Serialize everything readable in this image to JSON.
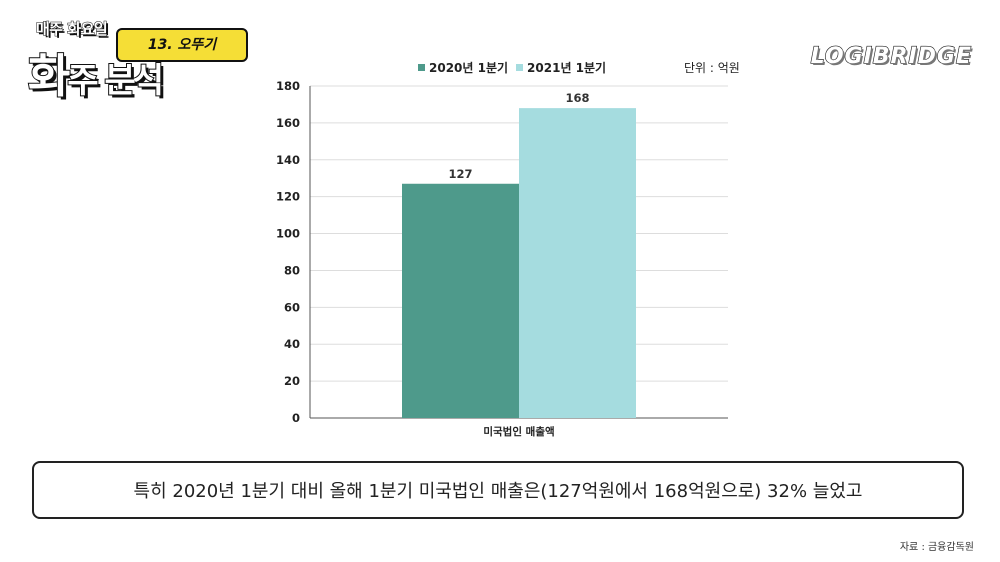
{
  "logo": {
    "series": "매주 화요일",
    "episode": "13. 오뚜기",
    "title_a": "화",
    "title_b": "주 분석"
  },
  "brand": "LOGIBRIDGE",
  "unit": "단위 : 억원",
  "caption": "특히 2020년 1분기 대비 올해 1분기 미국법인 매출은(127억원에서 168억원으로) 32% 늘었고",
  "source": "자료 : 금융감독원",
  "colors": {
    "series1": "#4e9a8b",
    "series2": "#a5dcdf"
  },
  "chart_data": {
    "type": "bar",
    "categories": [
      "미국법인 매출액"
    ],
    "series": [
      {
        "name": "2020년 1분기",
        "values": [
          127
        ]
      },
      {
        "name": "2021년 1분기",
        "values": [
          168
        ]
      }
    ],
    "title": "",
    "xlabel": "",
    "ylabel": "",
    "ylim": [
      0,
      180
    ],
    "yticks": [
      0,
      20,
      40,
      60,
      80,
      100,
      120,
      140,
      160,
      180
    ],
    "grid": true,
    "legend": "top"
  }
}
